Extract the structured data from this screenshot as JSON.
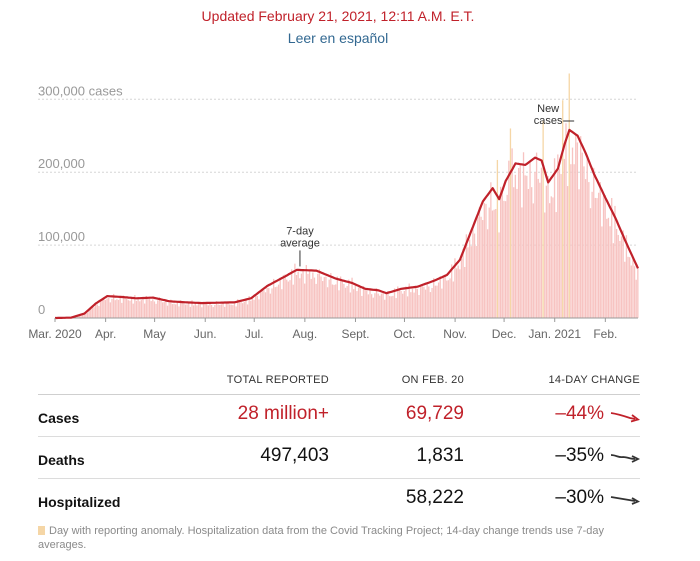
{
  "header": {
    "updated": "Updated February 21, 2021, 12:11 A.M. E.T.",
    "spanish_link": "Leer en español"
  },
  "colors": {
    "accent": "#c0212a",
    "bar": "#f7c3c1",
    "anomaly": "#f5d6a6",
    "link": "#326891"
  },
  "chart_data": {
    "type": "bar",
    "title": "New cases",
    "y_ticks": [
      {
        "value": 0,
        "label": "0"
      },
      {
        "value": 100000,
        "label": "100,000"
      },
      {
        "value": 200000,
        "label": "200,000"
      },
      {
        "value": 300000,
        "label": "300,000 cases"
      }
    ],
    "ylim": [
      0,
      310000
    ],
    "x_ticks": [
      {
        "day": 0,
        "label": "Mar. 2020"
      },
      {
        "day": 31,
        "label": "Apr."
      },
      {
        "day": 61,
        "label": "May"
      },
      {
        "day": 92,
        "label": "Jun."
      },
      {
        "day": 122,
        "label": "Jul."
      },
      {
        "day": 153,
        "label": "Aug."
      },
      {
        "day": 184,
        "label": "Sept."
      },
      {
        "day": 214,
        "label": "Oct."
      },
      {
        "day": 245,
        "label": "Nov."
      },
      {
        "day": 275,
        "label": "Dec."
      },
      {
        "day": 306,
        "label": "Jan. 2021"
      },
      {
        "day": 337,
        "label": "Feb."
      }
    ],
    "days_total": 357,
    "average_keypoints": [
      [
        0,
        0
      ],
      [
        10,
        500
      ],
      [
        18,
        6000
      ],
      [
        25,
        20000
      ],
      [
        32,
        30000
      ],
      [
        40,
        29000
      ],
      [
        50,
        27000
      ],
      [
        60,
        28000
      ],
      [
        70,
        23000
      ],
      [
        80,
        21500
      ],
      [
        90,
        20500
      ],
      [
        100,
        21000
      ],
      [
        110,
        21500
      ],
      [
        120,
        27000
      ],
      [
        130,
        44000
      ],
      [
        140,
        56000
      ],
      [
        148,
        66000
      ],
      [
        160,
        65000
      ],
      [
        172,
        54000
      ],
      [
        182,
        48000
      ],
      [
        190,
        40000
      ],
      [
        198,
        38000
      ],
      [
        203,
        34000
      ],
      [
        212,
        40000
      ],
      [
        222,
        43000
      ],
      [
        232,
        51000
      ],
      [
        240,
        59000
      ],
      [
        248,
        80000
      ],
      [
        255,
        120000
      ],
      [
        262,
        160000
      ],
      [
        268,
        178000
      ],
      [
        272,
        163000
      ],
      [
        276,
        188000
      ],
      [
        282,
        212000
      ],
      [
        288,
        210000
      ],
      [
        294,
        220000
      ],
      [
        298,
        216000
      ],
      [
        302,
        186000
      ],
      [
        308,
        205000
      ],
      [
        312,
        238000
      ],
      [
        315,
        258000
      ],
      [
        320,
        250000
      ],
      [
        325,
        226000
      ],
      [
        330,
        198000
      ],
      [
        337,
        165000
      ],
      [
        343,
        138000
      ],
      [
        350,
        102000
      ],
      [
        357,
        68000
      ]
    ],
    "anomaly_days": [
      271,
      279,
      299,
      311,
      315
    ],
    "annotations": {
      "average": {
        "day": 150,
        "value": 68000,
        "lines": [
          "7-day",
          "average"
        ]
      },
      "cases": {
        "day": 313,
        "value": 298000,
        "lines": [
          "New",
          "cases"
        ]
      }
    }
  },
  "table": {
    "headers": [
      "TOTAL REPORTED",
      "ON FEB. 20",
      "14-DAY CHANGE"
    ],
    "rows": [
      {
        "label": "Cases",
        "total": "28 million+",
        "on_day": "69,729",
        "change": "–44%",
        "trend": "down-steep",
        "color": "red"
      },
      {
        "label": "Deaths",
        "total": "497,403",
        "on_day": "1,831",
        "change": "–35%",
        "trend": "down",
        "color": "gray"
      },
      {
        "label": "Hospitalized",
        "total": "",
        "on_day": "58,222",
        "change": "–30%",
        "trend": "down-slight",
        "color": "gray"
      }
    ]
  },
  "footnote": "Day with reporting anomaly. Hospitalization data from the Covid Tracking Project; 14-day change trends use 7-day averages."
}
